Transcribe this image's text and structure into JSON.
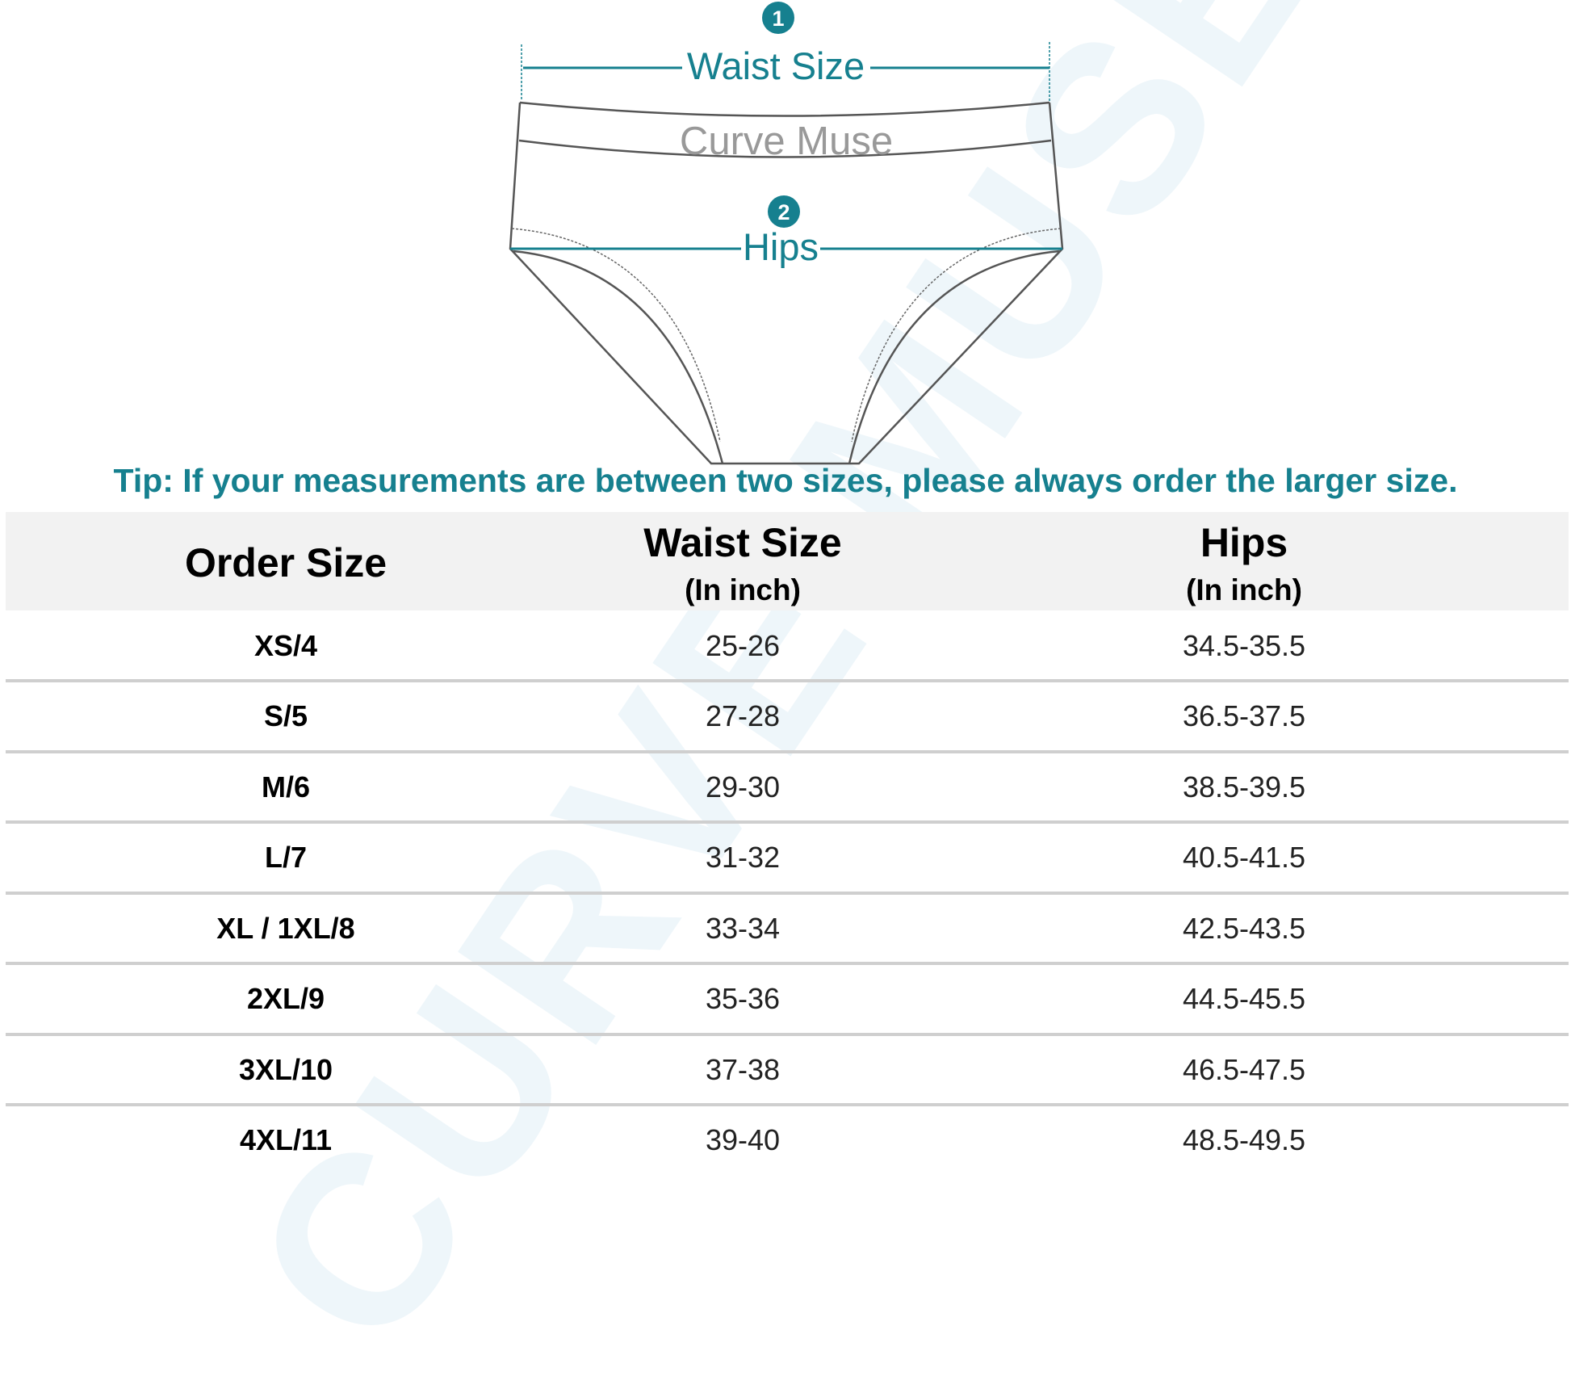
{
  "watermark": "CURVE MUSE",
  "diagram": {
    "badge_1": "1",
    "badge_2": "2",
    "waist_label": "Waist Size",
    "hips_label": "Hips",
    "brand_on_waistband": "Curve Muse"
  },
  "tip": "Tip: If your measurements are between two sizes, please always order the larger size.",
  "table": {
    "headers": [
      {
        "title": "Order Size",
        "unit": ""
      },
      {
        "title": "Waist Size",
        "unit": "(In inch)"
      },
      {
        "title": "Hips",
        "unit": "(In inch)"
      }
    ],
    "rows": [
      [
        "XS/4",
        "25-26",
        "34.5-35.5"
      ],
      [
        "S/5",
        "27-28",
        "36.5-37.5"
      ],
      [
        "M/6",
        "29-30",
        "38.5-39.5"
      ],
      [
        "L/7",
        "31-32",
        "40.5-41.5"
      ],
      [
        "XL / 1XL/8",
        "33-34",
        "42.5-43.5"
      ],
      [
        "2XL/9",
        "35-36",
        "44.5-45.5"
      ],
      [
        "3XL/10",
        "37-38",
        "46.5-47.5"
      ],
      [
        "4XL/11",
        "39-40",
        "48.5-49.5"
      ]
    ]
  },
  "colors": {
    "accent": "#16808f",
    "header_bg": "#f2f2f2",
    "outline": "#555555",
    "brand_text": "#999999",
    "watermark": "#eef6fa"
  }
}
